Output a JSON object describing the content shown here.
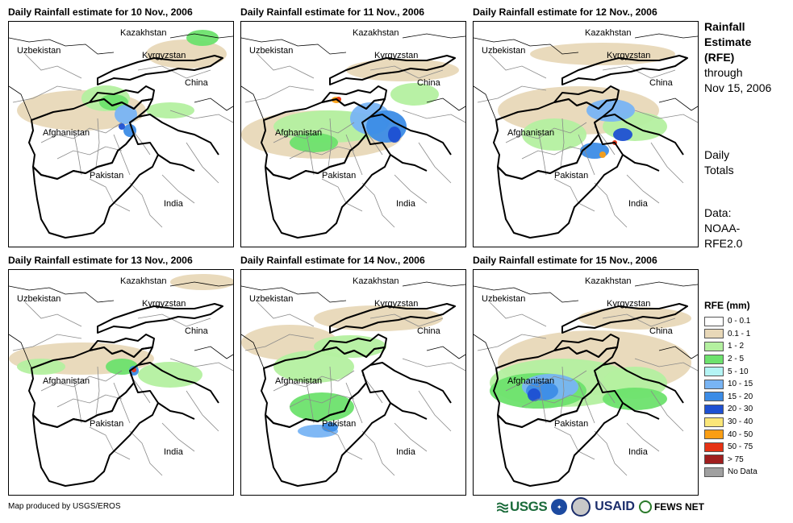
{
  "panels": [
    {
      "title": "Daily Rainfall estimate for 10 Nov., 2006"
    },
    {
      "title": "Daily Rainfall estimate for 11 Nov., 2006"
    },
    {
      "title": "Daily Rainfall estimate for 12 Nov., 2006"
    },
    {
      "title": "Daily Rainfall estimate for 13 Nov., 2006"
    },
    {
      "title": "Daily Rainfall estimate for 14 Nov., 2006"
    },
    {
      "title": "Daily Rainfall estimate for 15 Nov., 2006"
    }
  ],
  "map_labels": {
    "kazakhstan": "Kazakhstan",
    "uzbekistan": "Uzbekistan",
    "kyrgyzstan": "Kyrgyzstan",
    "china": "China",
    "afghanistan": "Afghanistan",
    "pakistan": "Pakistan",
    "india": "India"
  },
  "side": {
    "title_l1": "Rainfall",
    "title_l2": "Estimate",
    "title_l3": "(RFE)",
    "through": "through",
    "date": "Nov 15, 2006",
    "daily": "Daily",
    "totals": "Totals",
    "data_label": "Data:",
    "data_src1": "NOAA-",
    "data_src2": "RFE2.0"
  },
  "legend": {
    "title": "RFE (mm)",
    "items": [
      {
        "label": "0 - 0.1",
        "color": "#ffffff"
      },
      {
        "label": "0.1 - 1",
        "color": "#e8d8b8"
      },
      {
        "label": "1 - 2",
        "color": "#b4f0a0"
      },
      {
        "label": "2 - 5",
        "color": "#6de26d"
      },
      {
        "label": "5 - 10",
        "color": "#b4f4f4"
      },
      {
        "label": "10 - 15",
        "color": "#78b4f4"
      },
      {
        "label": "15 - 20",
        "color": "#3c8ce6"
      },
      {
        "label": "20 - 30",
        "color": "#1e50d2"
      },
      {
        "label": "30 - 40",
        "color": "#fae678"
      },
      {
        "label": "40 - 50",
        "color": "#fa9e14"
      },
      {
        "label": "50 - 75",
        "color": "#e63214"
      },
      {
        "label": "> 75",
        "color": "#a01e1e"
      },
      {
        "label": "No Data",
        "color": "#a0a0a0"
      }
    ]
  },
  "credit": "Map produced by USGS/EROS",
  "logos": {
    "usgs": "USGS",
    "usaid": "USAID",
    "fews": "FEWS NET"
  }
}
